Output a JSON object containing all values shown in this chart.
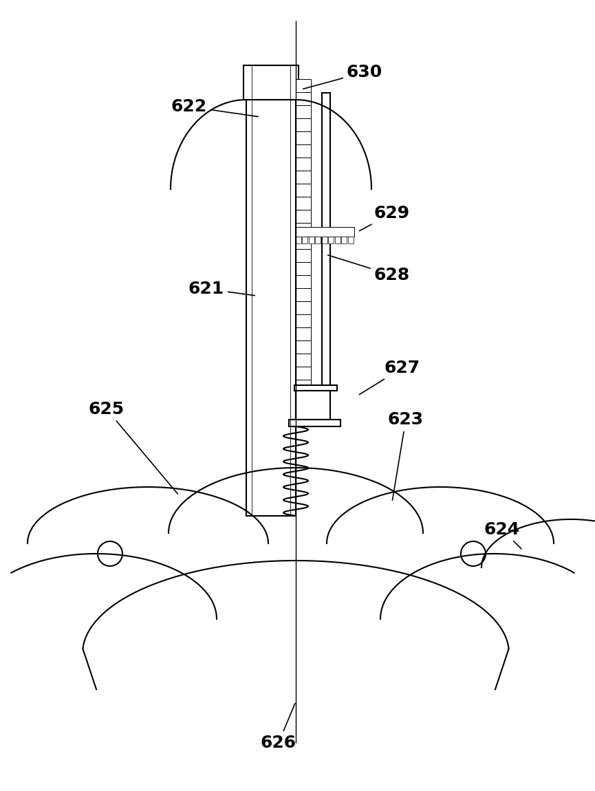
{
  "bg_color": "#ffffff",
  "line_color": "#000000",
  "lw_main": 1.5,
  "lw_thin": 0.8,
  "fig_width": 8.65,
  "fig_height": 11.5,
  "dpi": 100
}
